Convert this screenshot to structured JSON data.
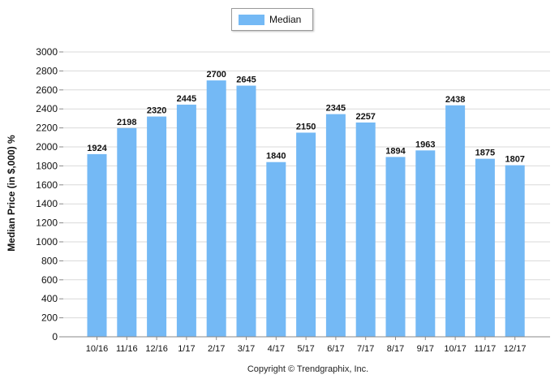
{
  "chart_data": {
    "type": "bar",
    "categories": [
      "10/16",
      "11/16",
      "12/16",
      "1/17",
      "2/17",
      "3/17",
      "4/17",
      "5/17",
      "6/17",
      "7/17",
      "8/17",
      "9/17",
      "10/17",
      "11/17",
      "12/17"
    ],
    "series": [
      {
        "name": "Median",
        "values": [
          1924,
          2198,
          2320,
          2445,
          2700,
          2645,
          1840,
          2150,
          2345,
          2257,
          1894,
          1963,
          2438,
          1875,
          1807
        ]
      }
    ],
    "ylabel": "Median Price (in $,000) %",
    "xlabel": "",
    "ylim": [
      0,
      3000
    ],
    "yticks": [
      0,
      200,
      400,
      600,
      800,
      1000,
      1200,
      1400,
      1600,
      1800,
      2000,
      2200,
      2400,
      2600,
      2800,
      3000
    ],
    "grid": true,
    "legend_position": "top-center",
    "colors": {
      "bar": "#74b9f5",
      "grid": "#d9d9d9",
      "axis": "#888888"
    }
  },
  "copyright": "Copyright © Trendgraphix, Inc."
}
